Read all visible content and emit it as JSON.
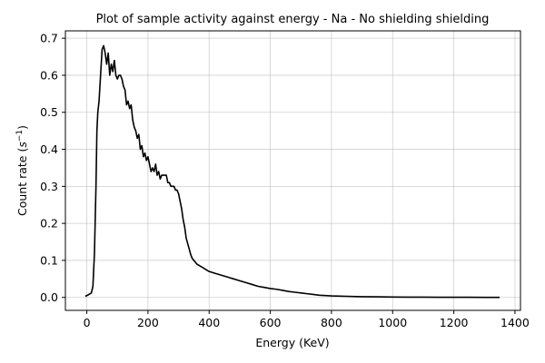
{
  "chart_data": {
    "type": "line",
    "title": "Plot of sample activity against energy - Na - No shielding shielding",
    "xlabel": "Energy (KeV)",
    "ylabel_main": "Count rate (",
    "ylabel_s": "s",
    "ylabel_sup": "−1",
    "ylabel_close": ")",
    "xlim": [
      -70,
      1418
    ],
    "ylim": [
      -0.035,
      0.72
    ],
    "xticks": [
      0,
      200,
      400,
      600,
      800,
      1000,
      1200,
      1400
    ],
    "xtick_labels": [
      "0",
      "200",
      "400",
      "600",
      "800",
      "1000",
      "1200",
      "1400"
    ],
    "yticks": [
      0.0,
      0.1,
      0.2,
      0.3,
      0.4,
      0.5,
      0.6,
      0.7
    ],
    "ytick_labels": [
      "0.0",
      "0.1",
      "0.2",
      "0.3",
      "0.4",
      "0.5",
      "0.6",
      "0.7"
    ],
    "grid": true,
    "series": [
      {
        "color": "#000000",
        "x": [
          -5,
          5,
          15,
          20,
          25,
          30,
          33,
          36,
          40,
          45,
          50,
          55,
          60,
          65,
          70,
          75,
          80,
          85,
          90,
          95,
          100,
          105,
          110,
          115,
          120,
          125,
          130,
          135,
          140,
          145,
          150,
          155,
          160,
          165,
          170,
          175,
          180,
          185,
          190,
          195,
          200,
          205,
          210,
          215,
          220,
          225,
          230,
          235,
          240,
          245,
          250,
          255,
          260,
          265,
          270,
          275,
          280,
          285,
          290,
          295,
          300,
          305,
          310,
          315,
          320,
          325,
          330,
          335,
          340,
          345,
          350,
          355,
          360,
          370,
          380,
          390,
          400,
          420,
          440,
          460,
          480,
          500,
          520,
          540,
          560,
          580,
          600,
          620,
          640,
          660,
          680,
          700,
          720,
          740,
          760,
          780,
          800,
          850,
          900,
          950,
          1000,
          1050,
          1100,
          1150,
          1200,
          1250,
          1300,
          1350
        ],
        "y": [
          0.003,
          0.007,
          0.012,
          0.03,
          0.12,
          0.3,
          0.45,
          0.5,
          0.53,
          0.6,
          0.67,
          0.68,
          0.66,
          0.63,
          0.66,
          0.6,
          0.63,
          0.61,
          0.64,
          0.6,
          0.59,
          0.6,
          0.6,
          0.59,
          0.57,
          0.56,
          0.52,
          0.53,
          0.51,
          0.52,
          0.48,
          0.46,
          0.45,
          0.43,
          0.44,
          0.4,
          0.41,
          0.38,
          0.39,
          0.37,
          0.38,
          0.36,
          0.34,
          0.35,
          0.34,
          0.36,
          0.33,
          0.34,
          0.32,
          0.33,
          0.33,
          0.33,
          0.33,
          0.31,
          0.31,
          0.3,
          0.3,
          0.3,
          0.29,
          0.29,
          0.28,
          0.26,
          0.24,
          0.21,
          0.19,
          0.16,
          0.145,
          0.13,
          0.115,
          0.105,
          0.1,
          0.095,
          0.09,
          0.085,
          0.08,
          0.075,
          0.07,
          0.065,
          0.06,
          0.055,
          0.05,
          0.045,
          0.04,
          0.035,
          0.03,
          0.027,
          0.024,
          0.022,
          0.019,
          0.016,
          0.014,
          0.012,
          0.01,
          0.008,
          0.006,
          0.005,
          0.004,
          0.003,
          0.002,
          0.0015,
          0.001,
          0.0008,
          0.0006,
          0.0005,
          0.0004,
          0.0003,
          0.0002,
          0.0001
        ]
      }
    ]
  }
}
